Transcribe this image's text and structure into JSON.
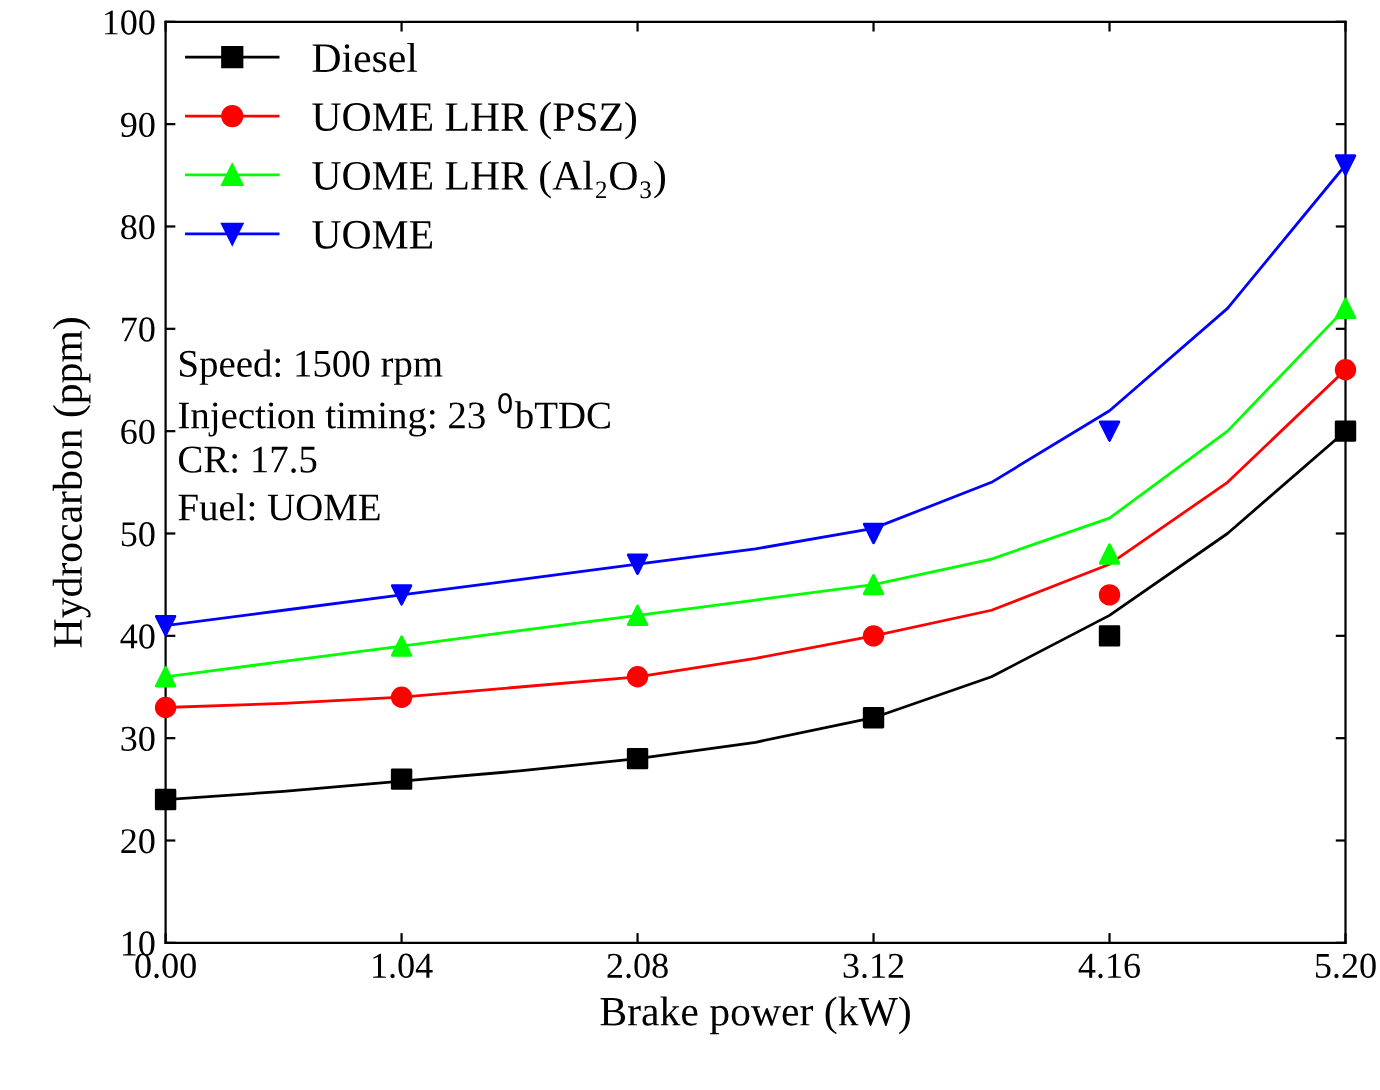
{
  "chart_data": {
    "type": "scatter",
    "xlabel": "Brake power (kW)",
    "ylabel": "Hydrocarbon (ppm)",
    "xlim": [
      0,
      5.2
    ],
    "ylim": [
      10,
      100
    ],
    "xticks": [
      {
        "value": 0,
        "label": "0.00"
      },
      1.04,
      2.08,
      3.12,
      4.16,
      {
        "value": 5.2,
        "label": "5.20"
      }
    ],
    "yticks": [
      10,
      20,
      30,
      40,
      50,
      60,
      70,
      80,
      90,
      100
    ],
    "grid": false,
    "legend": "top left",
    "x": [
      0,
      1.04,
      2.08,
      3.12,
      4.16,
      5.2
    ],
    "series": [
      {
        "name": "Diesel",
        "color": "#000000",
        "marker": "square",
        "values": [
          24,
          26,
          28,
          32,
          40,
          60
        ]
      },
      {
        "name": "UOME LHR (PSZ)",
        "color": "#ff0000",
        "marker": "circle",
        "values": [
          33,
          34,
          36,
          40,
          44,
          66
        ]
      },
      {
        "name": "UOME LHR (Al₂O₃)",
        "color": "#00ff00",
        "marker": "triangle",
        "values": [
          36,
          39,
          42,
          45,
          48,
          72
        ]
      },
      {
        "name": "UOME",
        "color": "#0000ff",
        "marker": "triangle_down",
        "values": [
          41,
          44,
          47,
          50,
          60,
          86
        ]
      },
      {
        "type": "line",
        "color": "#000000",
        "x": [
          0,
          0.52,
          1.04,
          1.56,
          2.08,
          2.6,
          3.12,
          3.64,
          4.16,
          4.68,
          5.2
        ],
        "values": [
          24,
          24.8,
          25.8,
          26.8,
          28,
          29.6,
          32,
          36,
          42,
          50,
          60
        ]
      },
      {
        "type": "line",
        "color": "#ff0000",
        "x": [
          0,
          0.52,
          1.04,
          1.56,
          2.08,
          2.6,
          3.12,
          3.64,
          4.16,
          4.68,
          5.2
        ],
        "values": [
          33,
          33.4,
          34,
          35,
          36,
          37.8,
          40,
          42.5,
          47,
          55,
          66
        ]
      },
      {
        "type": "line",
        "color": "#00ff00",
        "x": [
          0,
          0.52,
          1.04,
          1.56,
          2.08,
          2.6,
          3.12,
          3.64,
          4.16,
          4.68,
          5.2
        ],
        "values": [
          36,
          37.5,
          39,
          40.5,
          42,
          43.5,
          45,
          47.5,
          51.5,
          60,
          72
        ]
      },
      {
        "type": "line",
        "color": "#0000ff",
        "x": [
          0,
          0.52,
          1.04,
          1.56,
          2.08,
          2.6,
          3.12,
          3.64,
          4.16,
          4.68,
          5.2
        ],
        "values": [
          41,
          42.5,
          44,
          45.5,
          47,
          48.5,
          50.5,
          55,
          62,
          72,
          86
        ]
      }
    ],
    "annotations": [
      "Speed: 1500 rpm",
      "Injection timing: 23 $^{0}$bTDC",
      "CR: 17.5",
      "Fuel: UOME"
    ]
  }
}
